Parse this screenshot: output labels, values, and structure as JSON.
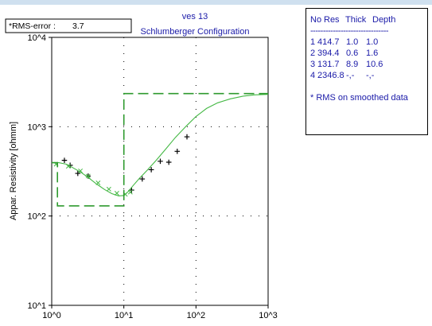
{
  "chart_data": {
    "type": "scatter",
    "title": "ves 13",
    "subtitle": "Schlumberger Configuration",
    "ylabel": "Appar. Resistivity [ohmm]",
    "xlabel": "",
    "x_scale": "log",
    "y_scale": "log",
    "xlim": [
      1,
      1000
    ],
    "ylim": [
      10,
      10000
    ],
    "x_ticks": [
      "10^0",
      "10^1",
      "10^2",
      "10^3"
    ],
    "y_ticks": [
      "10^1",
      "10^2",
      "10^3",
      "10^4"
    ],
    "grid": "dotted",
    "rms_label": "*RMS-error :",
    "rms_value": "3.7",
    "series": [
      {
        "kind": "measured",
        "marker": "+",
        "color": "#000000",
        "x": [
          1.5,
          1.8,
          2.3,
          3.2,
          12.8,
          18.0,
          24.0,
          32.0,
          42.0,
          55.0,
          75.0
        ],
        "y": [
          420,
          370,
          300,
          280,
          195,
          260,
          330,
          410,
          400,
          530,
          770
        ]
      },
      {
        "kind": "smoothed",
        "marker": "x",
        "color": "#44b844",
        "x": [
          1.15,
          1.7,
          2.5,
          3.2,
          4.4,
          6.2,
          8.0,
          10.5,
          12.3
        ],
        "y": [
          380,
          360,
          320,
          280,
          235,
          200,
          180,
          175,
          185
        ]
      },
      {
        "kind": "calculated",
        "style": "solid",
        "color": "#44b844",
        "x": [
          1.0,
          1.25,
          1.6,
          2.0,
          2.6,
          3.3,
          4.2,
          5.4,
          6.8,
          8.5,
          10.0,
          11.5,
          13.5,
          16.5,
          21.0,
          28.0,
          38.0,
          52.0,
          72.0,
          100.0,
          140.0,
          200.0,
          300.0,
          450.0,
          650.0,
          1000.0
        ],
        "y": [
          395,
          395,
          380,
          345,
          305,
          265,
          228,
          198,
          178,
          168,
          170,
          188,
          220,
          265,
          325,
          420,
          560,
          760,
          1000,
          1300,
          1600,
          1850,
          2050,
          2200,
          2270,
          2300
        ]
      },
      {
        "kind": "layered-model",
        "style": "dashed",
        "color": "#2e9a2e",
        "x": [
          1.0,
          1.2,
          1.2,
          10.0,
          10.0,
          1000.0
        ],
        "y": [
          395,
          395,
          130,
          130,
          2346.8,
          2346.8
        ]
      }
    ]
  },
  "layers_panel": {
    "headers": [
      "No",
      "Res",
      "Thick",
      "Depth"
    ],
    "separator": "-------------------------------",
    "rows": [
      [
        "1",
        "414.7",
        "1.0",
        "1.0"
      ],
      [
        "2",
        "394.4",
        "0.6",
        "1.6"
      ],
      [
        "3",
        "131.7",
        "8.9",
        "10.6"
      ],
      [
        "4",
        "2346.8",
        "-,-",
        "-,-"
      ]
    ],
    "note": "* RMS on smoothed data"
  },
  "colors": {
    "accent_text": "#1a1aa8",
    "curve": "#44b844",
    "model": "#2e9a2e",
    "top_strip": "#cfe0ef"
  }
}
